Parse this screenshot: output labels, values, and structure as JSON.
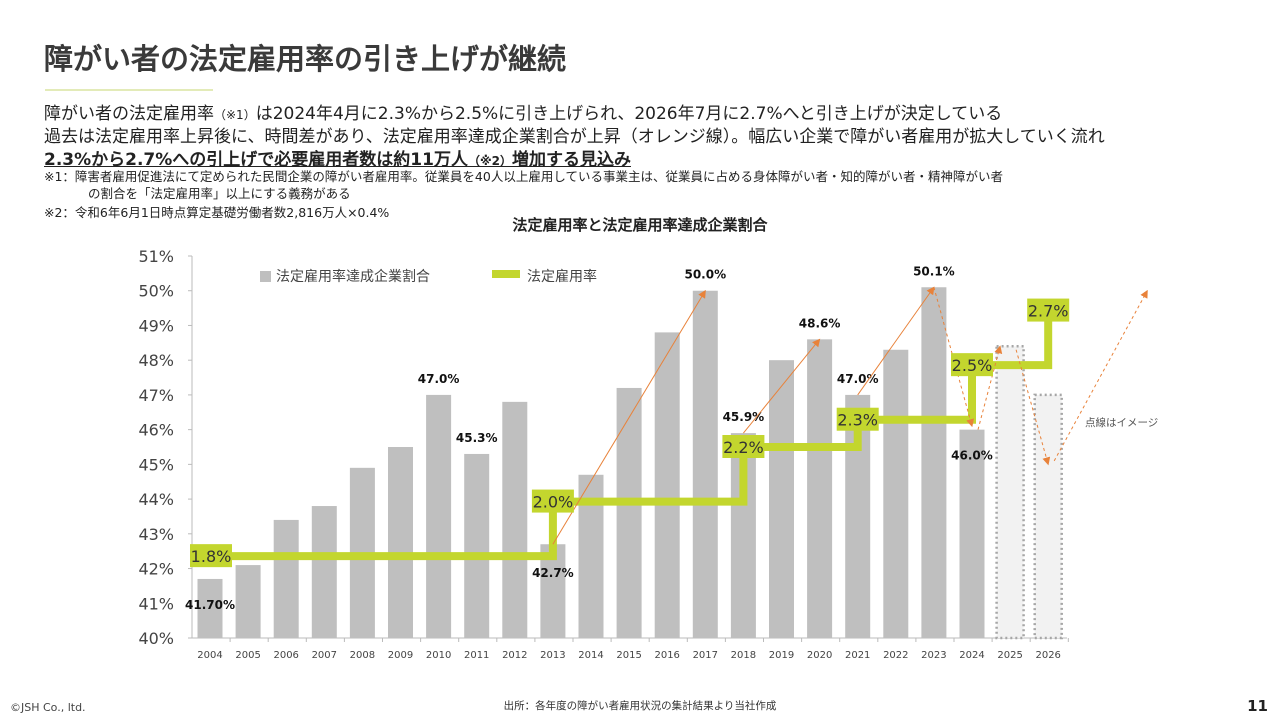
{
  "slide": {
    "title": "障がい者の法定雇用率の引き上げが継続",
    "body": {
      "line1_a": "障がい者の法定雇用率",
      "line1_ref": "（※1）",
      "line1_b": "は2024年4月に2.3%から2.5%に引き上げられ、2026年7月に2.7%へと引き上げが決定している",
      "line2": "過去は法定雇用率上昇後に、時間差があり、法定雇用率達成企業割合が上昇（オレンジ線）。幅広い企業で障がい者雇用が拡大していく流れ",
      "line3_a": "2.3%から2.7%への引上げで必要雇用者数は約11万人",
      "line3_ref": "（※2）",
      "line3_b": "増加する見込み"
    },
    "notes": {
      "note1": "※1：障害者雇用促進法にて定められた民間企業の障がい者雇用率。従業員を40人以上雇用している事業主は、従業員に占める身体障がい者・知的障がい者・精神障がい者",
      "note1_cont": "の割合を「法定雇用率」以上にする義務がある",
      "note2": "※2：令和6年6月1日時点算定基礎労働者数2,816万人×0.4%"
    },
    "footer": {
      "copyright": "©JSH Co., ltd.",
      "source": "出所：各年度の障がい者雇用状況の集計結果より当社作成",
      "page_number": "11"
    }
  },
  "chart_data": {
    "type": "bar",
    "title": "法定雇用率と法定雇用率達成企業割合",
    "categories": [
      "2004",
      "2005",
      "2006",
      "2007",
      "2008",
      "2009",
      "2010",
      "2011",
      "2012",
      "2013",
      "2014",
      "2015",
      "2016",
      "2017",
      "2018",
      "2019",
      "2020",
      "2021",
      "2022",
      "2023",
      "2024",
      "2025",
      "2026"
    ],
    "ylim": [
      40,
      51
    ],
    "yticks": [
      "40%",
      "41%",
      "42%",
      "43%",
      "44%",
      "45%",
      "46%",
      "47%",
      "48%",
      "49%",
      "50%",
      "51%"
    ],
    "grid": false,
    "legend_position": "top-left",
    "series": [
      {
        "name": "法定雇用率達成企業割合",
        "type": "bar",
        "color": "#bfbfbf",
        "values": [
          41.7,
          42.1,
          43.4,
          43.8,
          44.9,
          45.5,
          47.0,
          45.3,
          46.8,
          42.7,
          44.7,
          47.2,
          48.8,
          50.0,
          45.9,
          48.0,
          48.6,
          47.0,
          48.3,
          50.1,
          46.0,
          null,
          null
        ],
        "data_labels": {
          "2004": "41.70%",
          "2010": "47.0%",
          "2011": "45.3%",
          "2013": "42.7%",
          "2017": "50.0%",
          "2018": "45.9%",
          "2020": "48.6%",
          "2021": "47.0%",
          "2023": "50.1%",
          "2024": "46.0%"
        }
      },
      {
        "name": "法定雇用率",
        "type": "step-line",
        "color": "#c3d62e",
        "axis": "secondary-hidden",
        "secondary_range": [
          1.5,
          2.9
        ],
        "steps": [
          {
            "from": "2004",
            "to": "2013",
            "value": 1.8,
            "label": "1.8%"
          },
          {
            "from": "2013",
            "to": "2018",
            "value": 2.0,
            "label": "2.0%"
          },
          {
            "from": "2018",
            "to": "2021",
            "value": 2.2,
            "label": "2.2%"
          },
          {
            "from": "2021",
            "to": "2024",
            "value": 2.3,
            "label": "2.3%"
          },
          {
            "from": "2024",
            "to": "2026",
            "value": 2.5,
            "label": "2.5%"
          },
          {
            "from": "2026",
            "to": "2026",
            "value": 2.7,
            "label": "2.7%"
          }
        ]
      }
    ],
    "image_bars": {
      "note": "点線はイメージ",
      "style": "dotted",
      "values": {
        "2025": 48.4,
        "2026": 47.0
      }
    },
    "trend_arrows": {
      "color": "#e8823a",
      "solid": [
        [
          [
            "2013",
            42.7
          ],
          [
            "2017",
            50.0
          ]
        ],
        [
          [
            "2018",
            45.9
          ],
          [
            "2020",
            48.6
          ]
        ],
        [
          [
            "2021",
            47.0
          ],
          [
            "2023",
            50.1
          ]
        ]
      ],
      "dashed": [
        [
          [
            "2023",
            50.1
          ],
          [
            "2024",
            46.1
          ]
        ],
        [
          [
            "2024",
            46.0
          ],
          [
            "2025",
            48.4
          ]
        ],
        [
          [
            "2025",
            48.3
          ],
          [
            "2026",
            45.0
          ]
        ],
        [
          [
            "2026",
            45.1
          ],
          [
            "2028.6",
            50.0
          ]
        ]
      ]
    }
  }
}
